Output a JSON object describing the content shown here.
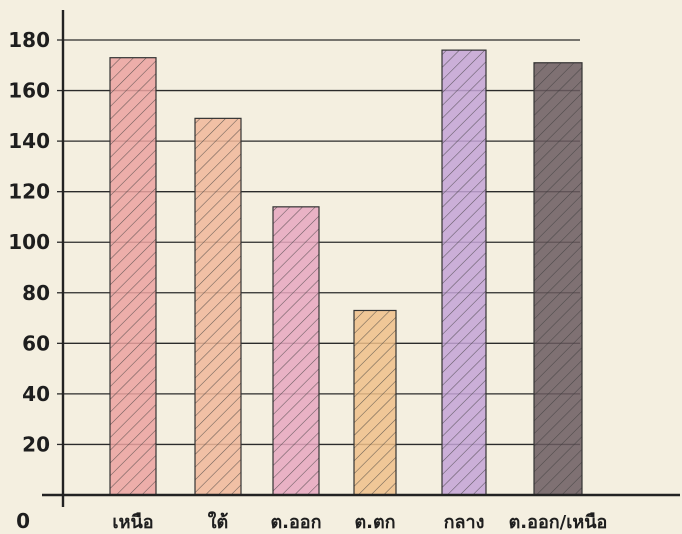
{
  "chart_data": {
    "type": "bar",
    "categories": [
      "เหนือ",
      "ใต้",
      "ต.ออก",
      "ต.ตก",
      "กลาง",
      "ต.ออก/เหนือ"
    ],
    "values": [
      173,
      149,
      114,
      73,
      176,
      171
    ],
    "bar_colors": [
      "#eba2a0",
      "#f0b79a",
      "#e6a7c0",
      "#efbf8a",
      "#c3a3d6",
      "#6a5a5f"
    ],
    "yticks": [
      0,
      20,
      40,
      60,
      80,
      100,
      120,
      140,
      160,
      180
    ],
    "ylim": [
      0,
      190
    ],
    "grid": true,
    "hatch": "diagonal"
  }
}
